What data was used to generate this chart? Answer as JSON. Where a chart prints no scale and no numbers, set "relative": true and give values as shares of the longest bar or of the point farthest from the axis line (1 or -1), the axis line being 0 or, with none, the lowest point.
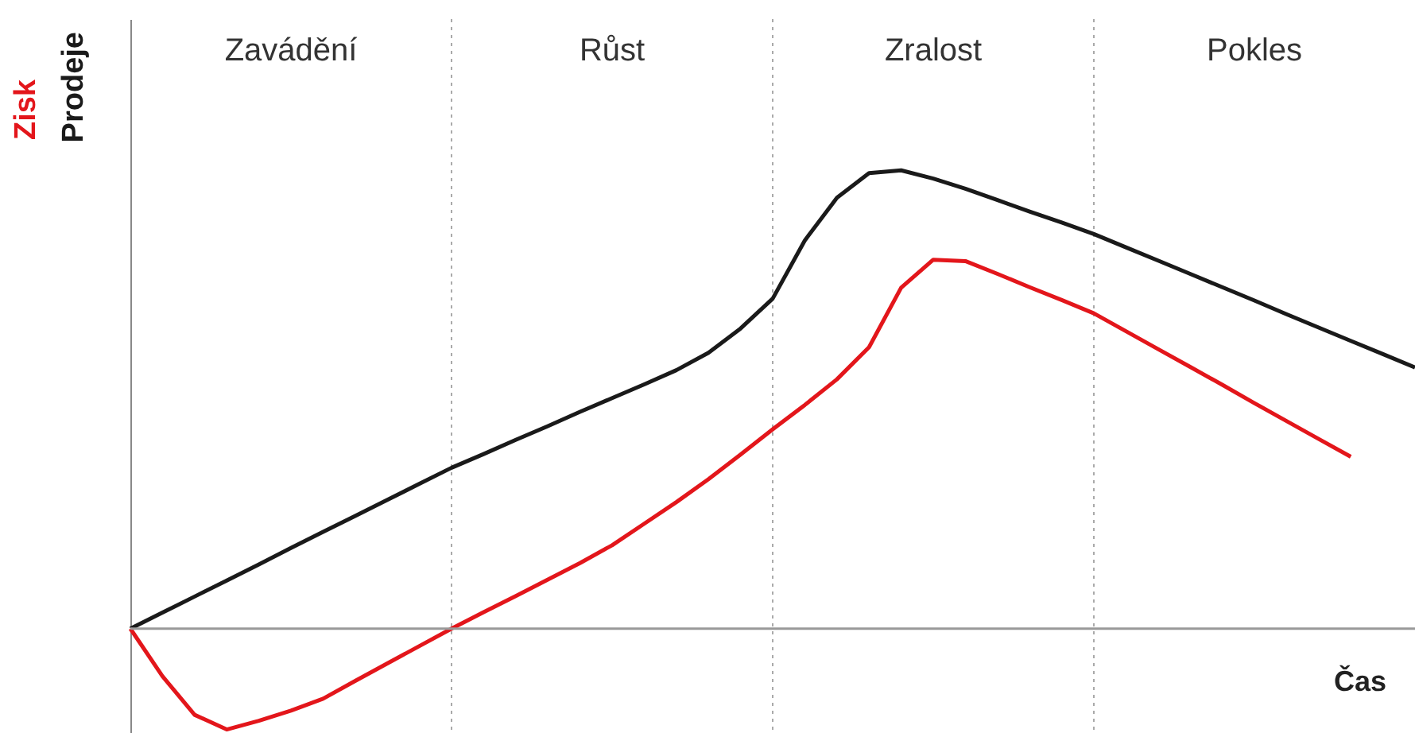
{
  "chart_data": {
    "type": "line",
    "relative": true,
    "xlabel": "Čas",
    "categories": [
      null,
      null,
      null,
      null,
      null,
      null,
      null,
      null,
      null,
      null,
      null,
      null,
      null,
      null,
      null,
      null,
      null,
      null,
      null,
      null,
      null,
      null,
      null,
      null,
      null,
      null,
      null,
      null,
      null,
      null,
      null,
      null,
      null,
      null,
      null,
      null,
      null,
      null,
      null,
      null,
      null
    ],
    "series": [
      {
        "name": "Prodeje",
        "color": "#1a1a1a",
        "values": [
          0,
          0.035,
          0.07,
          0.105,
          0.14,
          0.176,
          0.211,
          0.246,
          0.281,
          0.316,
          0.351,
          0.381,
          0.412,
          0.442,
          0.473,
          0.503,
          0.533,
          0.564,
          0.602,
          0.655,
          0.72,
          0.847,
          0.94,
          0.994,
          1,
          0.982,
          0.96,
          0.935,
          0.91,
          0.886,
          0.861,
          0.832,
          0.803,
          0.774,
          0.745,
          0.716,
          0.686,
          0.657,
          0.628,
          0.599,
          0.57
        ]
      },
      {
        "name": "Zisk",
        "color": "#e3161b",
        "values": [
          0,
          -0.104,
          -0.188,
          -0.22,
          -0.201,
          -0.179,
          -0.153,
          -0.114,
          -0.076,
          -0.038,
          0,
          0.036,
          0.071,
          0.107,
          0.143,
          0.182,
          0.229,
          0.276,
          0.326,
          0.38,
          0.435,
          0.488,
          0.544,
          0.614,
          0.744,
          0.805,
          0.802,
          0.774,
          0.745,
          0.717,
          0.688,
          0.649,
          0.61,
          0.571,
          0.532,
          0.492,
          0.453,
          0.414,
          0.375,
          null,
          null
        ]
      }
    ],
    "grid": "x",
    "annotations": [
      "Zavádění",
      "Růst",
      "Zralost",
      "Pokles"
    ]
  }
}
